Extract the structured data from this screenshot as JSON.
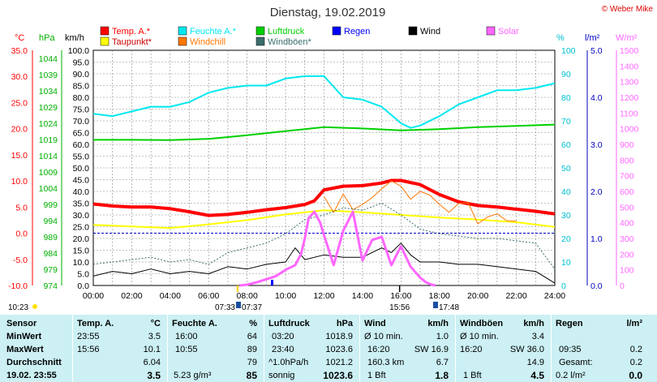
{
  "header": {
    "title": "Dienstag, 19.02.2019",
    "copyright": "© Weber Mike"
  },
  "legend": [
    {
      "label": "Temp. A.*",
      "color": "#ff0000"
    },
    {
      "label": "Feuchte A.*",
      "color": "#00e8f0"
    },
    {
      "label": "Luftdruck",
      "color": "#00d000"
    },
    {
      "label": "Regen",
      "color": "#0000ff"
    },
    {
      "label": "Wind",
      "color": "#000000"
    },
    {
      "label": "Solar",
      "color": "#ff66ff"
    },
    {
      "label": "Taupunkt*",
      "color": "#ffff00"
    },
    {
      "label": "Windchill",
      "color": "#ff7700"
    },
    {
      "label": "Windböen*",
      "color": "#3b6e6e"
    }
  ],
  "axes": {
    "temp": {
      "unit": "°C",
      "ticks": [
        "35.0",
        "30.0",
        "25.0",
        "20.0",
        "15.0",
        "10.0",
        "5.0",
        "0.0",
        "-5.0",
        "-10.0"
      ],
      "color": "#ff0000"
    },
    "pressure": {
      "unit": "hPa",
      "ticks": [
        "1044",
        "1039",
        "1034",
        "1029",
        "1024",
        "1019",
        "1014",
        "1009",
        "1004",
        "999",
        "994",
        "989",
        "984",
        "979",
        "974"
      ],
      "color": "#00b000"
    },
    "wind": {
      "unit": "km/h",
      "ticks": [
        "100.0",
        "95.0",
        "90.0",
        "85.0",
        "80.0",
        "75.0",
        "70.0",
        "65.0",
        "60.0",
        "55.0",
        "50.0",
        "45.0",
        "40.0",
        "35.0",
        "30.0",
        "25.0",
        "20.0",
        "15.0",
        "10.0",
        "5.0",
        "0.0"
      ]
    },
    "humidity": {
      "unit": "%",
      "ticks": [
        "100",
        "90",
        "80",
        "70",
        "60",
        "50",
        "40",
        "30",
        "20",
        "10",
        "0"
      ],
      "color": "#00c0d0"
    },
    "rain": {
      "unit": "l/m²",
      "ticks": [
        "5.0",
        "4.0",
        "3.0",
        "2.0",
        "1.0",
        "0.0"
      ],
      "color": "#0000c0"
    },
    "solar": {
      "unit": "W/m²",
      "ticks": [
        "1500",
        "1400",
        "1300",
        "1200",
        "1100",
        "1000",
        "900",
        "800",
        "700",
        "600",
        "500",
        "400",
        "300",
        "200",
        "100",
        "0"
      ],
      "color": "#ff66ff"
    },
    "x_ticks": [
      "00:00",
      "02:00",
      "04:00",
      "06:00",
      "08:00",
      "10:00",
      "12:00",
      "14:00",
      "16:00",
      "18:00",
      "20:00",
      "22:00",
      "24:00"
    ]
  },
  "markers": {
    "now": "10:23",
    "sunrise": "07:33",
    "sunrise2": "07:37",
    "sunset": "17:48",
    "tmax_time": "15:56",
    "sunrise_pos": 7.55,
    "tmax_pos": 15.93,
    "sunset_pos": 17.8
  },
  "chart_data": {
    "type": "line",
    "x_unit": "hours",
    "xlim": [
      0,
      24
    ],
    "series": [
      {
        "name": "Temp. A.*",
        "axis": "temp",
        "color": "#ff0000",
        "x": [
          0,
          1,
          2,
          3,
          4,
          5,
          6,
          7,
          8,
          9,
          10,
          11,
          11.5,
          12,
          13,
          14,
          15,
          15.5,
          16,
          17,
          18,
          19,
          20,
          21,
          22,
          23,
          24
        ],
        "y": [
          5.6,
          5.2,
          5.0,
          5.0,
          4.7,
          4.1,
          3.4,
          3.6,
          4.0,
          4.5,
          4.9,
          5.5,
          6.2,
          8.3,
          9.0,
          9.1,
          9.6,
          10.1,
          10.1,
          9.3,
          7.4,
          6.0,
          5.3,
          5.0,
          4.6,
          4.2,
          3.7
        ]
      },
      {
        "name": "Taupunkt*",
        "axis": "temp",
        "color": "#ffff00",
        "x": [
          0,
          2,
          4,
          6,
          8,
          10,
          12,
          14,
          16,
          18,
          20,
          22,
          24
        ],
        "y": [
          1.6,
          1.3,
          1.0,
          1.7,
          2.5,
          3.6,
          4.4,
          4.0,
          3.5,
          3.0,
          2.6,
          2.1,
          1.2
        ]
      },
      {
        "name": "Windchill",
        "axis": "temp",
        "color": "#ff7700",
        "x": [
          12,
          12.5,
          13,
          13.5,
          14,
          14.5,
          15,
          15.5,
          16,
          16.5,
          17,
          17.5,
          18,
          18.5,
          19,
          19.5,
          20,
          20.5,
          21,
          21.5,
          22
        ],
        "y": [
          7.0,
          4.0,
          7.5,
          4.5,
          5.5,
          6.8,
          8.5,
          10.0,
          9.0,
          6.5,
          8.0,
          7.3,
          5.5,
          4.0,
          5.7,
          5.8,
          1.8,
          3.1,
          3.7,
          2.4,
          2.3
        ]
      },
      {
        "name": "Feuchte A.*",
        "axis": "humidity",
        "color": "#00e8f0",
        "x": [
          0,
          1,
          2,
          3,
          4,
          5,
          6,
          7,
          8,
          9,
          10,
          11,
          12,
          13,
          14,
          15,
          16,
          16.5,
          17,
          18,
          19,
          20,
          21,
          22,
          23,
          24
        ],
        "y": [
          73,
          72,
          74,
          76,
          76,
          78,
          82,
          84,
          85,
          85,
          88,
          89,
          89,
          80,
          79,
          76,
          69,
          67,
          68,
          72,
          77,
          80,
          83,
          83,
          84,
          86
        ]
      },
      {
        "name": "Luftdruck",
        "axis": "pressure",
        "color": "#00d000",
        "x": [
          0,
          2,
          4,
          6,
          8,
          10,
          12,
          14,
          16,
          18,
          20,
          22,
          24
        ],
        "y": [
          1018.9,
          1018.9,
          1018.8,
          1019.2,
          1020.3,
          1021.6,
          1022.8,
          1022.4,
          1021.8,
          1022.2,
          1022.8,
          1023.2,
          1023.6
        ]
      },
      {
        "name": "Wind",
        "axis": "wind",
        "color": "#000000",
        "x": [
          0,
          1,
          2,
          3,
          4,
          5,
          6,
          7,
          8,
          9,
          10,
          10.5,
          11,
          12,
          13,
          14,
          15,
          15.5,
          16,
          16.5,
          17,
          17.5,
          18,
          19,
          20,
          21,
          22,
          23,
          24
        ],
        "y": [
          4,
          6,
          5,
          7,
          5,
          6,
          5,
          8,
          7,
          9,
          10,
          16,
          11,
          13,
          12,
          12,
          16,
          14,
          18,
          13,
          10,
          10,
          10,
          9,
          9,
          8,
          7,
          6,
          1
        ]
      },
      {
        "name": "Windböen*",
        "axis": "wind",
        "color": "#3b6e6e",
        "x": [
          0,
          1,
          2,
          3,
          4,
          5,
          6,
          7,
          8,
          9,
          10,
          11,
          12,
          13,
          14,
          15,
          16,
          17,
          18,
          19,
          20,
          21,
          22,
          23,
          24
        ],
        "y": [
          9,
          10,
          11,
          12,
          10,
          11,
          9,
          14,
          16,
          18,
          22,
          28,
          30,
          33,
          32,
          35,
          30,
          24,
          22,
          21,
          20,
          20,
          19,
          18,
          7
        ]
      },
      {
        "name": "Solar",
        "axis": "solar",
        "color": "#ff66ff",
        "x": [
          7.6,
          8,
          8.5,
          9,
          9.5,
          10,
          10.5,
          10.8,
          11,
          11.2,
          11.5,
          11.8,
          12,
          12.5,
          13,
          13.5,
          14,
          14.5,
          15,
          15.5,
          16,
          16.5,
          17,
          17.3,
          17.6,
          17.8
        ],
        "y": [
          0,
          5,
          20,
          40,
          60,
          100,
          130,
          200,
          300,
          430,
          470,
          400,
          320,
          130,
          350,
          470,
          160,
          290,
          310,
          130,
          250,
          120,
          50,
          20,
          5,
          0
        ]
      },
      {
        "name": "Regen",
        "axis": "rain",
        "color": "#0000ff",
        "x": [
          9.3
        ],
        "y": [
          0.12
        ]
      }
    ]
  },
  "stats": {
    "headers": {
      "sensor": "Sensor",
      "temp": "Temp. A.",
      "temp_unit": "°C",
      "hum": "Feuchte A.",
      "hum_unit": "%",
      "press": "Luftdruck",
      "press_unit": "hPa",
      "wind": "Wind",
      "wind_unit": "km/h",
      "gust": "Windböen",
      "gust_unit": "km/h",
      "rain": "Regen",
      "rain_unit": "l/m²"
    },
    "rows": {
      "min": "MinWert",
      "max": "MaxWert",
      "avg": "Durchschnitt",
      "now": "19.02. 23:55"
    },
    "temp": {
      "min_t": "23:55",
      "min_v": "3.5",
      "max_t": "15:56",
      "max_v": "10.1",
      "avg": "6.04",
      "cur": "3.5"
    },
    "hum": {
      "min_t": "16:00",
      "min_v": "64",
      "max_t": "10:55",
      "max_v": "89",
      "avg": "79",
      "cur_extra": "5.23 g/m³",
      "cur": "85"
    },
    "press": {
      "min_t": "03:20",
      "min_v": "1018.9",
      "max_t": "23:40",
      "max_v": "1023.6",
      "avg_l": "^1.0hPa/h",
      "avg": "1021.2",
      "cur_l": "sonnig",
      "cur": "1023.6"
    },
    "wind": {
      "min_l": "Ø 10 min.",
      "min_v": "1.0",
      "max_t": "16:20",
      "max_d": "SW 16.9",
      "avg_l": "160.3 km",
      "avg": "6.7",
      "cur_l": "1 Bft",
      "cur": "1.8"
    },
    "gust": {
      "min_l": "Ø 10 min.",
      "min_v": "3.4",
      "max_t": "16:20",
      "max_d": "SW 36.0",
      "avg": "14.9",
      "cur_l": "1 Bft",
      "cur": "4.5"
    },
    "rain": {
      "max_t": "09:35",
      "max_v": "0.2",
      "avg_l": "Gesamt:",
      "avg": "0.2",
      "cur_l": "0.2 l/m²",
      "cur": "0.0"
    }
  }
}
